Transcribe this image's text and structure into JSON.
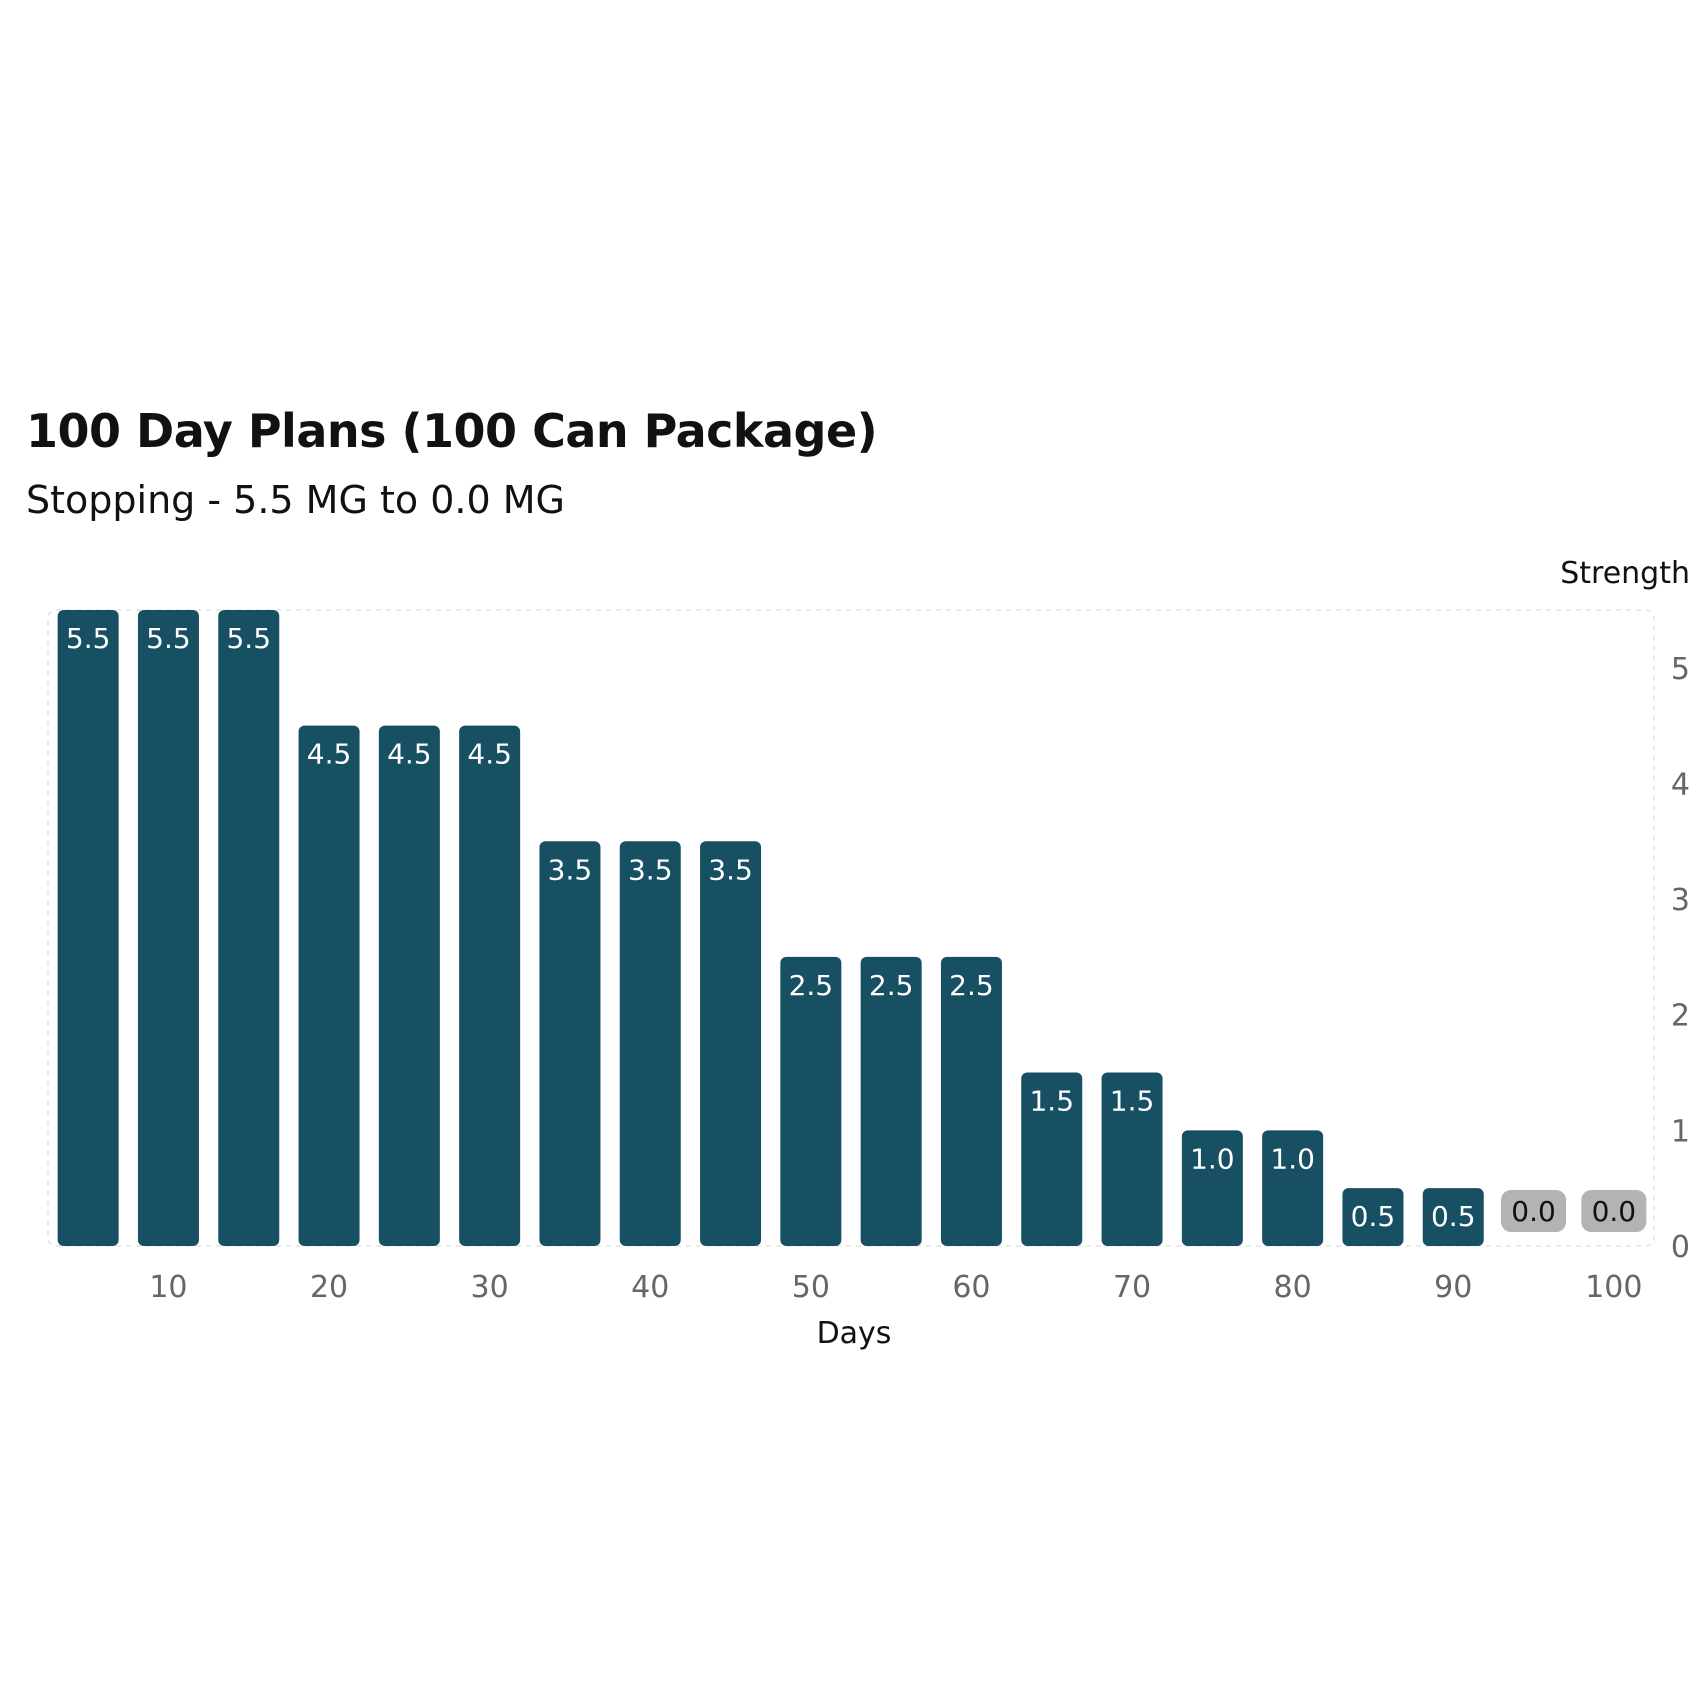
{
  "colors": {
    "bar": "#174f63",
    "bar_zero": "#b3b3b3",
    "label_on_bar": "#ffffff",
    "label_on_zero": "#111111",
    "grid": "#e3e3e3",
    "tick_text": "#666666"
  },
  "chart_data": {
    "type": "bar",
    "title": "100 Day Plans (100 Can Package)",
    "subtitle": "Stopping - 5.5 MG to 0.0 MG",
    "xlabel": "Days",
    "ylabel": "Strength",
    "x": [
      5,
      10,
      15,
      20,
      25,
      30,
      35,
      40,
      45,
      50,
      55,
      60,
      65,
      70,
      75,
      80,
      85,
      90,
      95,
      100
    ],
    "values": [
      5.5,
      5.5,
      5.5,
      4.5,
      4.5,
      4.5,
      3.5,
      3.5,
      3.5,
      2.5,
      2.5,
      2.5,
      1.5,
      1.5,
      1.0,
      1.0,
      0.5,
      0.5,
      0.0,
      0.0
    ],
    "data_labels": [
      "5.5",
      "5.5",
      "5.5",
      "4.5",
      "4.5",
      "4.5",
      "3.5",
      "3.5",
      "3.5",
      "2.5",
      "2.5",
      "2.5",
      "1.5",
      "1.5",
      "1.0",
      "1.0",
      "0.5",
      "0.5",
      "0.0",
      "0.0"
    ],
    "x_ticks": [
      10,
      20,
      30,
      40,
      50,
      60,
      70,
      80,
      90,
      100
    ],
    "x_tick_labels": [
      "10",
      "20",
      "30",
      "40",
      "50",
      "60",
      "70",
      "80",
      "90",
      "100"
    ],
    "y_ticks": [
      0,
      1,
      2,
      3,
      4,
      5
    ],
    "y_tick_labels": [
      "0",
      "1",
      "2",
      "3",
      "4",
      "5"
    ],
    "ylim": [
      0,
      5.5
    ],
    "xlim": [
      2.5,
      102.5
    ],
    "y_axis_position": "right",
    "grid": false,
    "legend": "none"
  }
}
